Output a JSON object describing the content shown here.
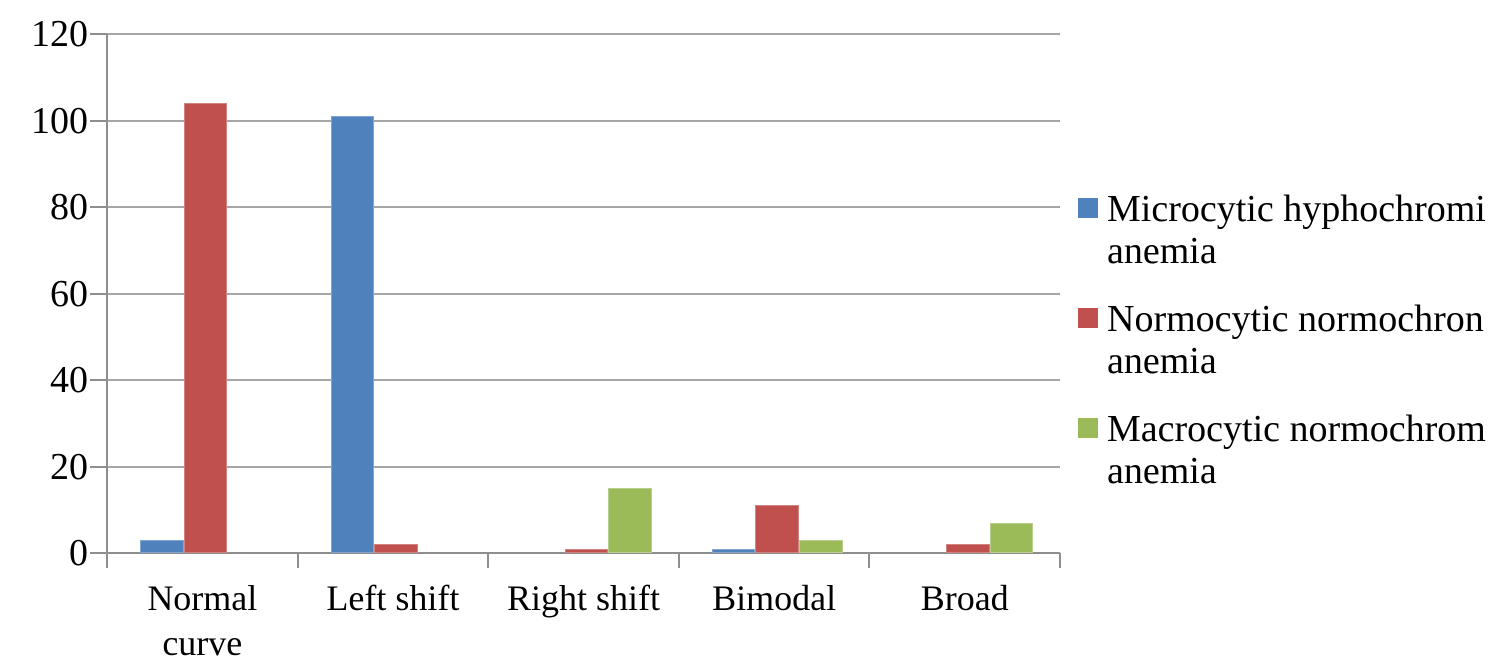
{
  "chart_data": {
    "type": "bar",
    "title": "",
    "xlabel": "",
    "ylabel": "",
    "categories": [
      "Normal curve",
      "Left shift",
      "Right shift",
      "Bimodal",
      "Broad"
    ],
    "series": [
      {
        "name": "Microcytic hyphochromi anemia",
        "name_lines": [
          "Microcytic hyphochromi",
          "anemia"
        ],
        "color": "#4F81BD",
        "border_color": "#81A5CE",
        "values": [
          3,
          101,
          0,
          1,
          0
        ]
      },
      {
        "name": "Normocytic normochron anemia",
        "name_lines": [
          "Normocytic normochron",
          "anemia"
        ],
        "color": "#C0504D",
        "border_color": "#D1837F",
        "values": [
          104,
          2,
          1,
          11,
          2
        ]
      },
      {
        "name": "Macrocytic normochrom anemia",
        "name_lines": [
          "Macrocytic normochrom",
          "anemia"
        ],
        "color": "#9BBB59",
        "border_color": "#BACF8E",
        "values": [
          0,
          0,
          15,
          3,
          7
        ]
      }
    ],
    "y_axis": {
      "min": 0,
      "max": 120,
      "step": 20,
      "tick_labels": [
        "0",
        "20",
        "40",
        "60",
        "80",
        "100",
        "120"
      ]
    },
    "x_axis": {
      "tick_labels": [
        "Normal curve",
        "Left shift",
        "Right shift",
        "Bimodal",
        "Broad"
      ]
    },
    "grid": true,
    "legend_position": "right"
  },
  "colors": {
    "gridline": "#A6A6A6",
    "axis": "#8E8E8E",
    "text": "#000000",
    "background": "#FFFFFF"
  }
}
